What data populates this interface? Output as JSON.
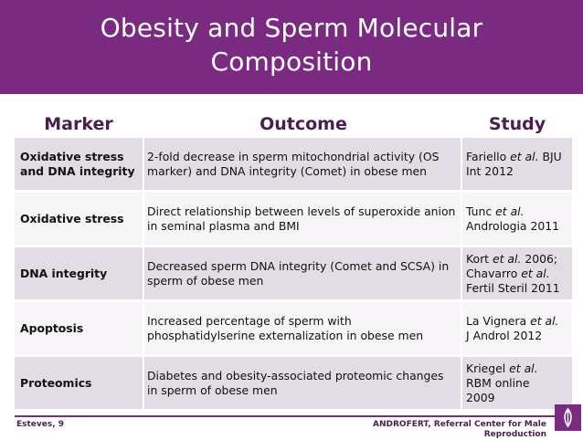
{
  "slide": {
    "title_line1": "Obesity and Sperm Molecular",
    "title_line2": "Composition"
  },
  "table": {
    "headers": {
      "marker": "Marker",
      "outcome": "Outcome",
      "study": "Study"
    },
    "rows": [
      {
        "marker": "Oxidative stress and DNA integrity",
        "outcome": "2-fold decrease in sperm mitochondrial activity (OS marker) and DNA integrity (Comet) in obese men",
        "study": {
          "author": "Fariello",
          "etal": "et al.",
          "rest": "BJU Int 2012"
        }
      },
      {
        "marker": "Oxidative stress",
        "outcome": "Direct relationship between levels of superoxide anion in seminal plasma and BMI",
        "study": {
          "author": "Tunc",
          "etal": "et al.",
          "rest": "Andrologia 2011"
        }
      },
      {
        "marker": "DNA integrity",
        "outcome": "Decreased sperm DNA integrity (Comet and SCSA) in sperm of obese men",
        "study": {
          "line1": "Kort",
          "etal1": "et al.",
          "line1_rest": "2006;",
          "line2": "Chavarro",
          "etal2": "et al.",
          "line3": "Fertil Steril 2011"
        }
      },
      {
        "marker": "Apoptosis",
        "outcome": "Increased percentage of sperm with phosphatidylserine externalization in obese men",
        "study": {
          "author": "La Vignera",
          "etal": "et al.",
          "rest": "J Androl 2012"
        }
      },
      {
        "marker": "Proteomics",
        "outcome": "Diabetes and obesity-associated proteomic changes in sperm of obese men",
        "study": {
          "author": "Kriegel",
          "etal": "et al.",
          "rest1": "RBM online",
          "rest2": "2009"
        }
      }
    ]
  },
  "footer": {
    "left": "Esteves, 9",
    "right": "ANDROFERT, Referral Center for Male Reproduction"
  },
  "colors": {
    "accent": "#7a2a80",
    "row_alt": "#e2dce4",
    "row_plain": "#f7f5f8"
  },
  "icons": {
    "logo": "androfert-logo-icon"
  }
}
